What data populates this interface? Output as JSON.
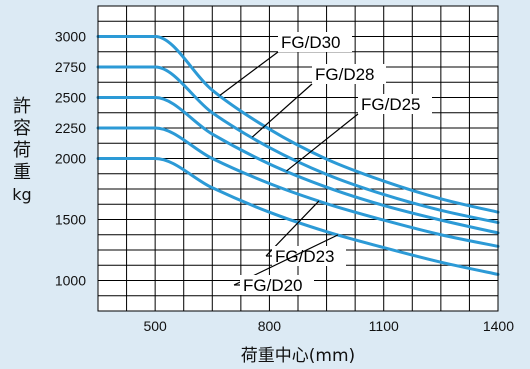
{
  "chart_data": {
    "type": "line",
    "title": "",
    "xlabel": "荷重中心(mm)",
    "ylabel_chars": [
      "許",
      "容",
      "荷",
      "重",
      "kg"
    ],
    "x_ticks": [
      500,
      800,
      1100,
      1400
    ],
    "y_ticks": [
      1000,
      1500,
      2000,
      2250,
      2500,
      2750,
      3000
    ],
    "xlim": [
      350,
      1400
    ],
    "ylim": [
      750,
      3250
    ],
    "grid": true,
    "legend": "inline-callouts",
    "line_color": "#2c9ad6",
    "series": [
      {
        "name": "FG/D30",
        "x": [
          350,
          500,
          650,
          800,
          950,
          1100,
          1250,
          1400
        ],
        "y": [
          3000,
          3000,
          2560,
          2240,
          1995,
          1815,
          1670,
          1560
        ]
      },
      {
        "name": "FG/D28",
        "x": [
          350,
          500,
          650,
          800,
          950,
          1100,
          1250,
          1400
        ],
        "y": [
          2750,
          2750,
          2375,
          2090,
          1870,
          1705,
          1575,
          1475
        ]
      },
      {
        "name": "FG/D25",
        "x": [
          350,
          500,
          650,
          800,
          950,
          1100,
          1250,
          1400
        ],
        "y": [
          2500,
          2500,
          2200,
          1955,
          1765,
          1615,
          1495,
          1390
        ]
      },
      {
        "name": "FG/D23",
        "x": [
          350,
          500,
          650,
          800,
          950,
          1100,
          1250,
          1400
        ],
        "y": [
          2250,
          2250,
          2000,
          1795,
          1630,
          1495,
          1375,
          1280
        ]
      },
      {
        "name": "FG/D20",
        "x": [
          350,
          500,
          650,
          800,
          950,
          1100,
          1250,
          1400
        ],
        "y": [
          2000,
          2000,
          1760,
          1560,
          1400,
          1270,
          1150,
          1050
        ]
      }
    ]
  }
}
